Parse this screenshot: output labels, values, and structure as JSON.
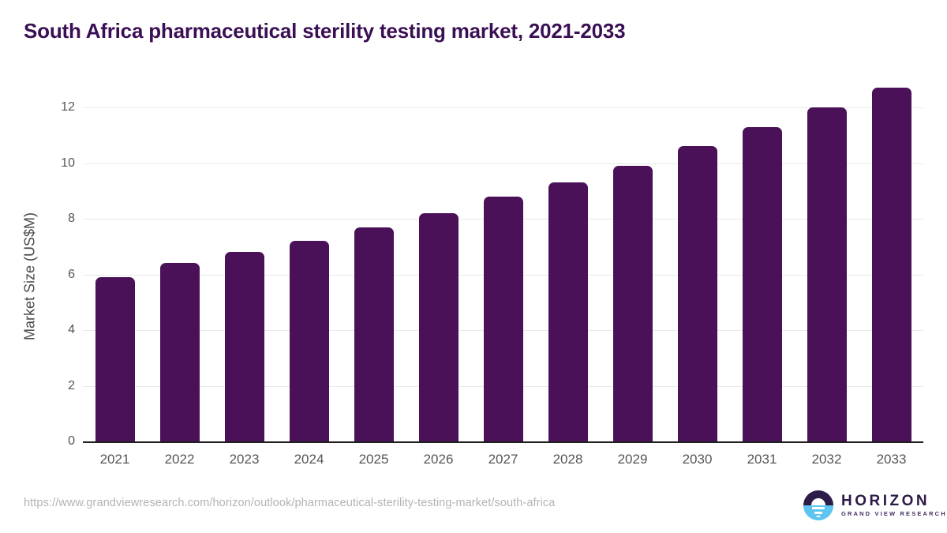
{
  "title": "South Africa pharmaceutical sterility testing market, 2021-2033",
  "footer": {
    "source_url": "https://www.grandviewresearch.com/horizon/outlook/pharmaceutical-sterility-testing-market/south-africa",
    "logo_brand": "HORIZON",
    "logo_subbrand": "GRAND VIEW RESEARCH"
  },
  "colors": {
    "bar": "#4a1158",
    "title": "#3a0f54",
    "axis_text": "#555555",
    "gridline": "#e9e9e9",
    "axis_line": "#1f1f1f",
    "url_text": "#b3b3b3",
    "logo_dark_half": "#2b1c49",
    "logo_blue_half": "#5ec5f0",
    "logo_text": "#2e1a47"
  },
  "chart_data": {
    "type": "bar",
    "title": "South Africa pharmaceutical sterility testing market, 2021-2033",
    "categories": [
      "2021",
      "2022",
      "2023",
      "2024",
      "2025",
      "2026",
      "2027",
      "2028",
      "2029",
      "2030",
      "2031",
      "2032",
      "2033"
    ],
    "values": [
      5.9,
      6.4,
      6.8,
      7.2,
      7.7,
      8.2,
      8.8,
      9.3,
      9.9,
      10.6,
      11.3,
      12.0,
      12.7
    ],
    "xlabel": "",
    "ylabel": "Market Size (US$M)",
    "ylim": [
      0,
      13.1
    ],
    "yticks": [
      0,
      2,
      4,
      6,
      8,
      10,
      12
    ],
    "grid": "horizontal-only",
    "legend": "none",
    "bar_color": "#4a1158"
  }
}
